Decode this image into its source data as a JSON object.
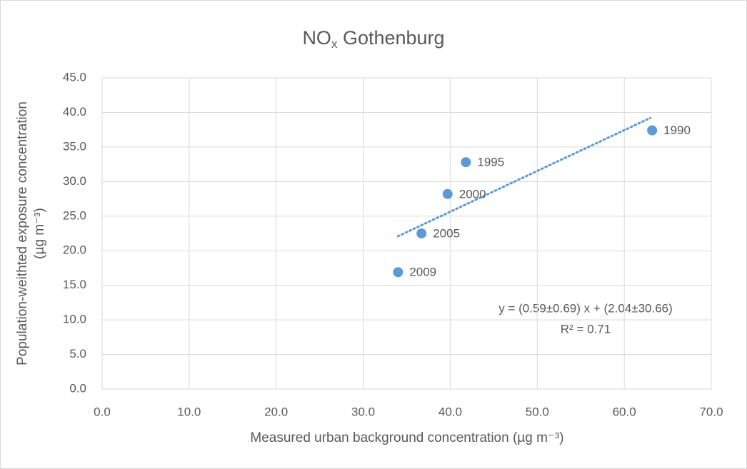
{
  "chart_data": {
    "type": "scatter",
    "title": {
      "main": "NO",
      "sub": "x",
      "rest": " Gothenburg"
    },
    "x_label": "Measured urban background concentration (µg m⁻³)",
    "y_label": [
      "Population-weithted exposure concentration",
      "(µg m⁻³)"
    ],
    "xlim": [
      0,
      70
    ],
    "xticks": [
      {
        "value": 0,
        "label": "0.0"
      },
      {
        "value": 10,
        "label": "10.0"
      },
      {
        "value": 20,
        "label": "20.0"
      },
      {
        "value": 30,
        "label": "30.0"
      },
      {
        "value": 40,
        "label": "40.0"
      },
      {
        "value": 50,
        "label": "50.0"
      },
      {
        "value": 60,
        "label": "60.0"
      },
      {
        "value": 70,
        "label": "70.0"
      }
    ],
    "ylim": [
      0,
      45
    ],
    "yticks": [
      {
        "value": 0,
        "label": "0.0"
      },
      {
        "value": 5,
        "label": "5.0"
      },
      {
        "value": 10,
        "label": "10.0"
      },
      {
        "value": 15,
        "label": "15.0"
      },
      {
        "value": 20,
        "label": "20.0"
      },
      {
        "value": 25,
        "label": "25.0"
      },
      {
        "value": 30,
        "label": "30.0"
      },
      {
        "value": 35,
        "label": "35.0"
      },
      {
        "value": 40,
        "label": "40.0"
      },
      {
        "value": 45,
        "label": "45.0"
      }
    ],
    "grid": true,
    "series": [
      {
        "color": "#5b9bd5",
        "x": [
          63.2,
          41.8,
          39.7,
          36.7,
          34.0
        ],
        "values": [
          37.4,
          32.8,
          28.2,
          22.5,
          16.9
        ],
        "labels": [
          "1990",
          "1995",
          "2000",
          "2005",
          "2009"
        ]
      }
    ],
    "trendline": {
      "color": "#5b9bd5",
      "x": [
        34.0,
        63.0
      ],
      "values": [
        22.1,
        39.2
      ]
    },
    "annotations": [
      "y = (0.59±0.69) x + (2.04±30.66)",
      "R² = 0.71"
    ]
  }
}
